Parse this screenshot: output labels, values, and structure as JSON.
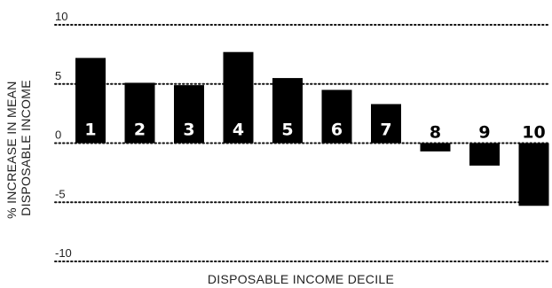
{
  "chart_data": {
    "type": "bar",
    "categories": [
      "1",
      "2",
      "3",
      "4",
      "5",
      "6",
      "7",
      "8",
      "9",
      "10"
    ],
    "values": [
      7.2,
      5.1,
      4.9,
      7.7,
      5.5,
      4.5,
      3.3,
      -0.7,
      -1.9,
      -5.3
    ],
    "ylim": [
      -10,
      10
    ],
    "yticks": [
      10,
      5,
      0,
      -5,
      -10
    ],
    "ytick_labels": [
      "10",
      "5",
      "0",
      "-5",
      "-10"
    ],
    "ylabel_lines": [
      "% INCREASE IN MEAN",
      "DISPOSABLE INCOME"
    ],
    "xlabel": "DISPOSABLE INCOME DECILE",
    "grid": "dotted horizontal",
    "colors": {
      "bar": "#000000",
      "label_inside": "#ffffff",
      "label_outside": "#000000"
    }
  }
}
